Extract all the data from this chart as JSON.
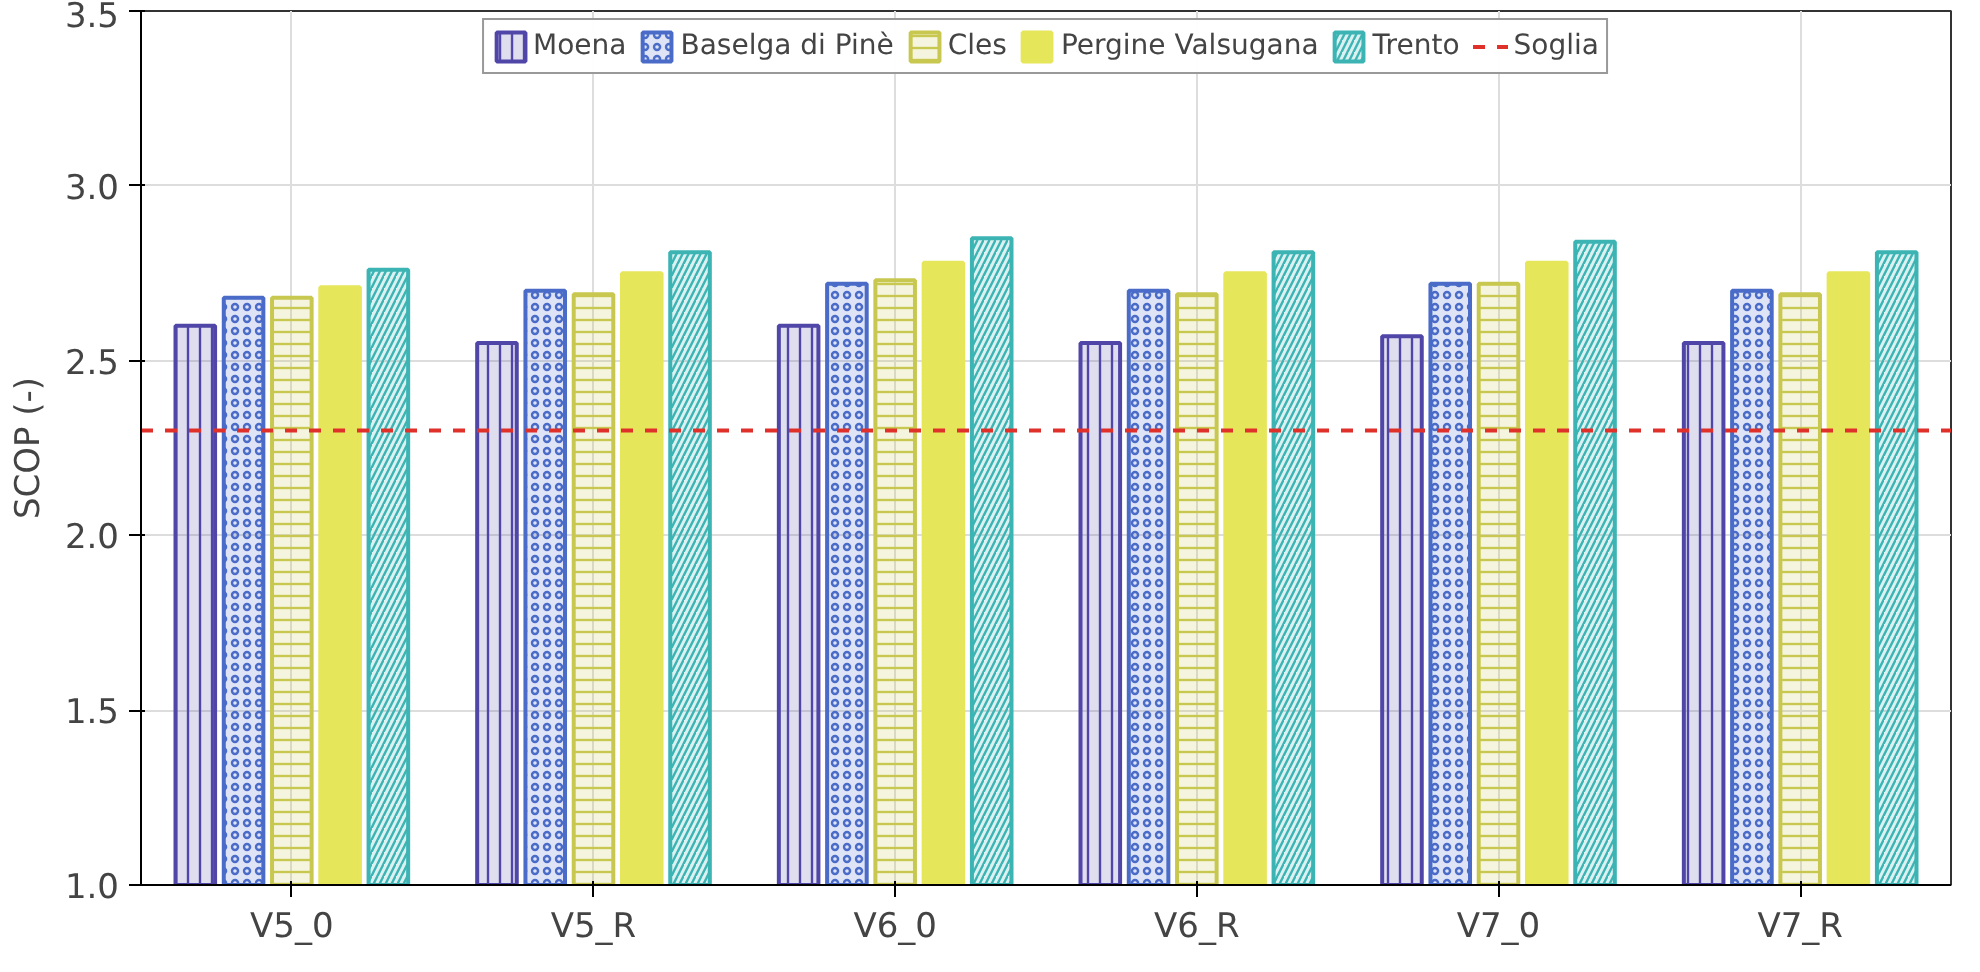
{
  "chart_data": {
    "type": "bar",
    "ylabel": "SCOP (-)",
    "categories": [
      "V5_0",
      "V5_R",
      "V6_0",
      "V6_R",
      "V7_0",
      "V7_R"
    ],
    "series": [
      {
        "name": "Moena",
        "color": "#5046a8",
        "values": [
          2.6,
          2.55,
          2.6,
          2.55,
          2.57,
          2.55
        ]
      },
      {
        "name": "Baselga di Pinè",
        "color": "#4a6cc8",
        "values": [
          2.68,
          2.7,
          2.72,
          2.7,
          2.72,
          2.7
        ]
      },
      {
        "name": "Cles",
        "color": "#c8c850",
        "values": [
          2.68,
          2.69,
          2.73,
          2.69,
          2.72,
          2.69
        ]
      },
      {
        "name": "Pergine Valsugana",
        "color": "#e6e65a",
        "values": [
          2.71,
          2.75,
          2.78,
          2.75,
          2.78,
          2.75
        ]
      },
      {
        "name": "Trento",
        "color": "#3cb4b4",
        "values": [
          2.76,
          2.81,
          2.85,
          2.81,
          2.84,
          2.81
        ]
      }
    ],
    "ylim": [
      1.0,
      3.5
    ],
    "yticks": [
      {
        "value": 1,
        "label": "1.0"
      },
      1.5,
      {
        "value": 2,
        "label": "2.0"
      },
      2.5,
      {
        "value": 3,
        "label": "3.0"
      },
      3.5
    ],
    "ref_lines": [
      {
        "axis": "y",
        "value": 2.3,
        "label": "Soglia",
        "color": "#e0302a",
        "line_style": "dashed"
      }
    ],
    "grid": true,
    "legend": "top"
  }
}
